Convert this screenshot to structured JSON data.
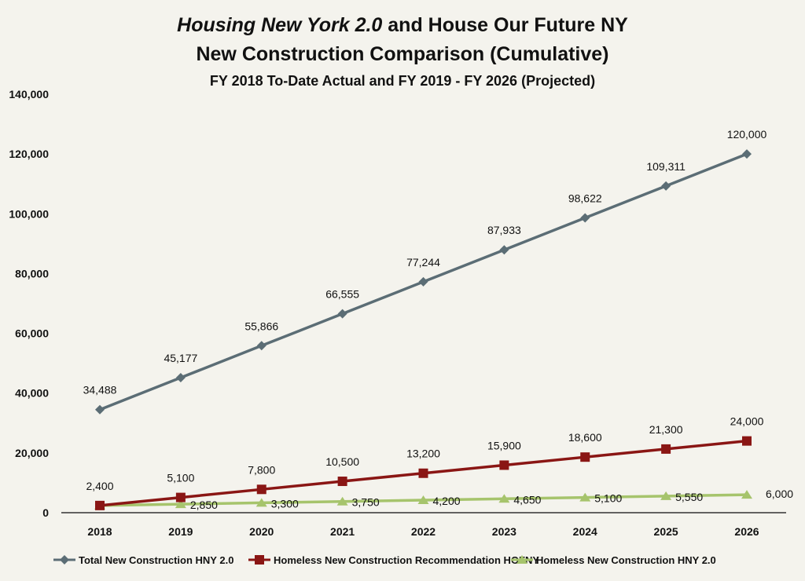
{
  "chart_data": {
    "type": "line",
    "title_italic": "Housing New York 2.0",
    "title_rest": " and House Our Future NY",
    "title_line2": "New Construction Comparison (Cumulative)",
    "subtitle": "FY 2018 To-Date Actual and FY 2019 - FY 2026 (Projected)",
    "xlabel": "",
    "ylabel": "",
    "ylim": [
      0,
      140000
    ],
    "yticks": [
      0,
      20000,
      40000,
      60000,
      80000,
      100000,
      120000,
      140000
    ],
    "ytick_labels": [
      "0",
      "20,000",
      "40,000",
      "60,000",
      "80,000",
      "100,000",
      "120,000",
      "140,000"
    ],
    "categories": [
      "2018",
      "2019",
      "2020",
      "2021",
      "2022",
      "2023",
      "2024",
      "2025",
      "2026"
    ],
    "grid": false,
    "legend_position": "bottom",
    "series": [
      {
        "name": "Total New Construction HNY 2.0",
        "color": "#5b6d75",
        "marker": "diamond",
        "values": [
          34488,
          45177,
          55866,
          66555,
          77244,
          87933,
          98622,
          109311,
          120000
        ],
        "labels": [
          "34,488",
          "45,177",
          "55,866",
          "66,555",
          "77,244",
          "87,933",
          "98,622",
          "109,311",
          "120,000"
        ]
      },
      {
        "name": "Homeless New Construction Recommendation HOFNY",
        "color": "#8a1614",
        "marker": "square",
        "values": [
          2400,
          5100,
          7800,
          10500,
          13200,
          15900,
          18600,
          21300,
          24000
        ],
        "labels": [
          "2,400",
          "5,100",
          "7,800",
          "10,500",
          "13,200",
          "15,900",
          "18,600",
          "21,300",
          "24,000"
        ]
      },
      {
        "name": "Homeless New Construction HNY 2.0",
        "color": "#a6c46c",
        "marker": "triangle",
        "values": [
          2400,
          2850,
          3300,
          3750,
          4200,
          4650,
          5100,
          5550,
          6000
        ],
        "labels": [
          "",
          "2,850",
          "3,300",
          "3,750",
          "4,200",
          "4,650",
          "5,100",
          "5,550",
          "6,000"
        ]
      }
    ]
  }
}
